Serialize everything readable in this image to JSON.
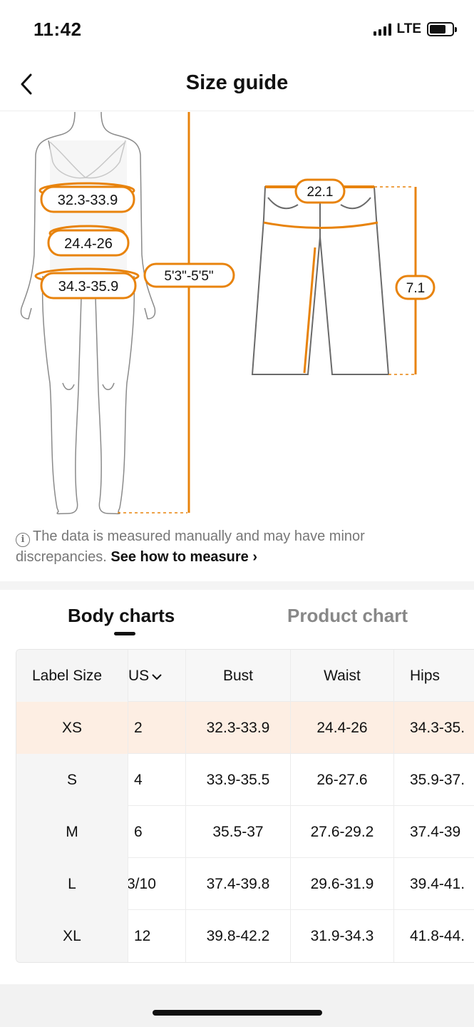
{
  "status_bar": {
    "time": "11:42",
    "network": "LTE"
  },
  "nav": {
    "title": "Size guide",
    "back_icon": "chevron-left-icon"
  },
  "diagram": {
    "body_labels": {
      "bust": "32.3-33.9",
      "waist": "24.4-26",
      "hips": "34.3-35.9",
      "height": "5'3\"-5'5\""
    },
    "product_labels": {
      "waist": "22.1",
      "length": "7.1"
    },
    "accent_color": "#e8830c"
  },
  "note": {
    "text": "The data is measured manually and may have minor discrepancies.",
    "link": "See how to measure",
    "icon": "info-icon"
  },
  "tabs": [
    {
      "label": "Body charts",
      "active": true
    },
    {
      "label": "Product chart",
      "active": false
    }
  ],
  "table": {
    "headers": {
      "label": "Label Size",
      "us": "US",
      "bust": "Bust",
      "waist": "Waist",
      "hips": "Hips"
    },
    "rows": [
      {
        "label": "XS",
        "us": "2",
        "bust": "32.3-33.9",
        "waist": "24.4-26",
        "hips": "34.3-35.",
        "highlight": true
      },
      {
        "label": "S",
        "us": "4",
        "bust": "33.9-35.5",
        "waist": "26-27.6",
        "hips": "35.9-37."
      },
      {
        "label": "M",
        "us": "6",
        "bust": "35.5-37",
        "waist": "27.6-29.2",
        "hips": "37.4-39"
      },
      {
        "label": "L",
        "us": "3/10",
        "bust": "37.4-39.8",
        "waist": "29.6-31.9",
        "hips": "39.4-41."
      },
      {
        "label": "XL",
        "us": "12",
        "bust": "39.8-42.2",
        "waist": "31.9-34.3",
        "hips": "41.8-44."
      }
    ]
  }
}
